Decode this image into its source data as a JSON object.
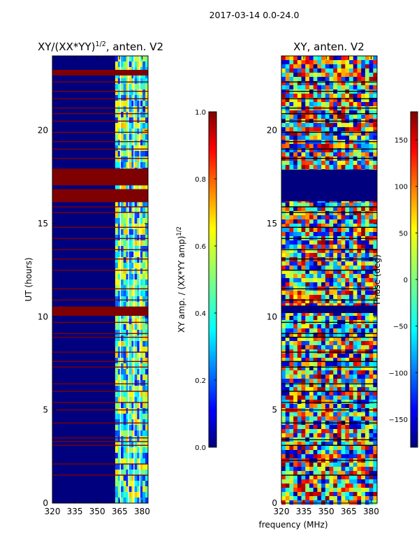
{
  "figure_title": "2017-03-14 0.0-24.0",
  "colors": {
    "jet": [
      "#00007f",
      "#0000ff",
      "#007fff",
      "#00ffff",
      "#7fff7f",
      "#ffff00",
      "#ff7f00",
      "#ff0000",
      "#7f0000"
    ],
    "flag_red": "#7f0000",
    "deep_blue": "#00007f",
    "gap_white": "#ffffff",
    "gap_black": "#000000"
  },
  "chart_data": [
    {
      "type": "heatmap",
      "id": "amp",
      "title_prefix": "XY/(XX*YY)",
      "title_exp": "1/2",
      "title_suffix": ", anten. V2",
      "xlabel": "",
      "ylabel": "UT (hours)",
      "xlim": [
        320,
        384
      ],
      "ylim": [
        0,
        24
      ],
      "x_ticks": [
        320,
        335,
        350,
        365,
        380
      ],
      "y_ticks": [
        0,
        5,
        10,
        15,
        20
      ],
      "colorbar": {
        "label_main": "XY amp. / (XX*YY amp)",
        "label_exp": "1/2",
        "range": [
          0.0,
          1.0
        ],
        "ticks": [
          "0.0",
          "0.2",
          "0.4",
          "0.6",
          "0.8",
          "1.0"
        ]
      },
      "flagged_bands_hours": [
        [
          10.05,
          10.55
        ],
        [
          16.15,
          16.85
        ],
        [
          17.05,
          17.95
        ],
        [
          22.95,
          23.25
        ]
      ],
      "flagged_lines_hours": [
        1.5,
        2.1,
        3.1,
        3.3,
        3.5,
        4.3,
        5.0,
        5.4,
        6.0,
        6.4,
        7.3,
        7.6,
        8.1,
        8.9,
        9.1,
        9.7,
        10.9,
        11.5,
        12.5,
        13.1,
        13.6,
        14.2,
        14.8,
        15.6,
        15.9,
        18.5,
        19.0,
        19.4,
        19.9,
        20.5,
        20.9,
        21.2,
        21.7,
        22.1,
        22.6
      ],
      "band_edge_mhz": 362,
      "x_gap_mhz": [
        [
          365.2,
          365.8
        ],
        [
          370.6,
          371.2
        ],
        [
          374.3,
          374.9
        ],
        [
          378.2,
          378.8
        ]
      ]
    },
    {
      "type": "heatmap",
      "id": "phase",
      "title": "XY, anten. V2",
      "xlabel": "frequency (MHz)",
      "ylabel": "",
      "xlim": [
        320,
        384
      ],
      "ylim": [
        0,
        24
      ],
      "x_ticks": [
        320,
        335,
        350,
        365,
        380
      ],
      "y_ticks": [
        0,
        5,
        10,
        15,
        20
      ],
      "colorbar": {
        "label": "Phase (deg)",
        "range": [
          -180,
          180
        ],
        "ticks": [
          "150",
          "100",
          "50",
          "0",
          "−50",
          "−100",
          "−150"
        ]
      },
      "dark_bands_hours": [
        [
          16.2,
          17.9
        ],
        [
          10.2,
          10.6
        ]
      ],
      "flagged_lines_hours": [
        1.5,
        2.3,
        3.1,
        3.4,
        4.3,
        5.0,
        5.4,
        6.0,
        6.4,
        7.3,
        7.6,
        8.1,
        8.9,
        9.1,
        9.7,
        10.9,
        11.5,
        12.5,
        13.1,
        13.6,
        14.2,
        14.8,
        15.6,
        15.9,
        18.5,
        19.0,
        19.4,
        19.9,
        20.5,
        20.9,
        21.2,
        21.7,
        22.1,
        22.6
      ]
    }
  ]
}
